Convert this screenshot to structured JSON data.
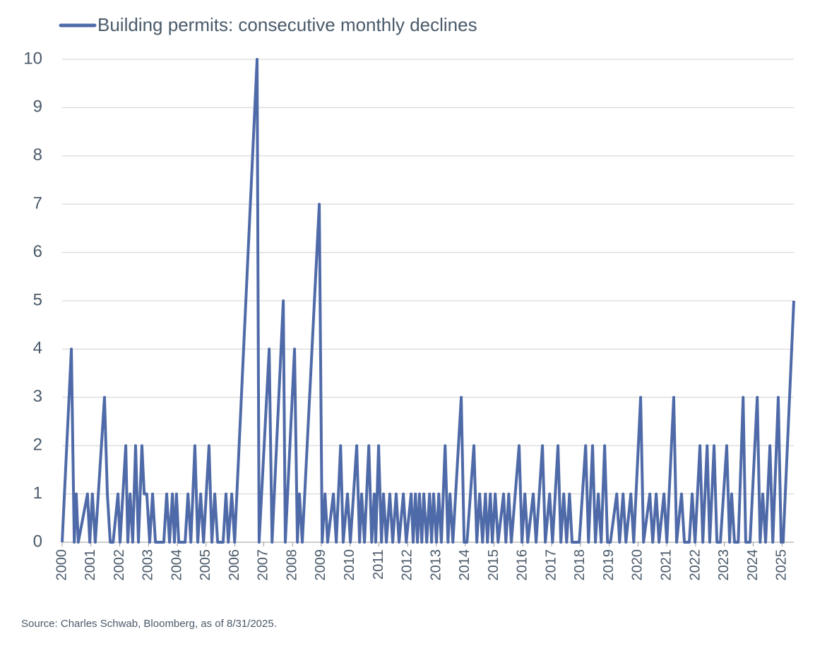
{
  "chart_data": {
    "type": "line",
    "series": [
      {
        "name": "Building permits: consecutive monthly declines",
        "color": "#4f6aa8",
        "x": [
          2000,
          2000.32,
          2000.42,
          2000.49,
          2000.56,
          2000.88,
          2000.96,
          2001.05,
          2001.15,
          2001.47,
          2001.57,
          2001.67,
          2001.77,
          2001.94,
          2002.01,
          2002.21,
          2002.28,
          2002.36,
          2002.45,
          2002.55,
          2002.65,
          2002.77,
          2002.85,
          2002.94,
          2003.04,
          2003.14,
          2003.24,
          2003.53,
          2003.63,
          2003.73,
          2003.83,
          2003.9,
          2003.97,
          2004.05,
          2004.27,
          2004.37,
          2004.47,
          2004.61,
          2004.71,
          2004.81,
          2004.91,
          2005.1,
          2005.2,
          2005.3,
          2005.4,
          2005.59,
          2005.69,
          2005.77,
          2005.89,
          2005.99,
          2006.77,
          2006.84,
          2007.19,
          2007.29,
          2007.68,
          2007.75,
          2008.07,
          2008.17,
          2008.24,
          2008.34,
          2008.93,
          2009.03,
          2009.13,
          2009.22,
          2009.42,
          2009.52,
          2009.67,
          2009.76,
          2009.91,
          2010.01,
          2010.23,
          2010.33,
          2010.4,
          2010.5,
          2010.65,
          2010.75,
          2010.84,
          2010.89,
          2010.99,
          2011.09,
          2011.16,
          2011.26,
          2011.38,
          2011.48,
          2011.6,
          2011.7,
          2011.85,
          2011.95,
          2012.12,
          2012.19,
          2012.27,
          2012.34,
          2012.41,
          2012.49,
          2012.56,
          2012.66,
          2012.76,
          2012.83,
          2012.9,
          2013,
          2013.08,
          2013.17,
          2013.3,
          2013.4,
          2013.47,
          2013.57,
          2013.86,
          2013.96,
          2014.06,
          2014.3,
          2014.4,
          2014.5,
          2014.6,
          2014.7,
          2014.77,
          2014.87,
          2014.94,
          2015.04,
          2015.14,
          2015.33,
          2015.41,
          2015.51,
          2015.6,
          2015.87,
          2015.97,
          2016.07,
          2016.17,
          2016.36,
          2016.46,
          2016.68,
          2016.78,
          2016.93,
          2017.03,
          2017.22,
          2017.32,
          2017.42,
          2017.52,
          2017.62,
          2017.71,
          2017.96,
          2018.18,
          2018.28,
          2018.42,
          2018.52,
          2018.62,
          2018.72,
          2018.84,
          2018.94,
          2019.04,
          2019.26,
          2019.36,
          2019.48,
          2019.58,
          2019.75,
          2019.85,
          2020.09,
          2020.19,
          2020.41,
          2020.51,
          2020.63,
          2020.73,
          2020.9,
          2021,
          2021.24,
          2021.34,
          2021.51,
          2021.61,
          2021.78,
          2021.88,
          2021.98,
          2022.15,
          2022.25,
          2022.4,
          2022.49,
          2022.64,
          2022.74,
          2022.86,
          2023.08,
          2023.18,
          2023.25,
          2023.35,
          2023.48,
          2023.65,
          2023.74,
          2023.89,
          2024.14,
          2024.24,
          2024.33,
          2024.43,
          2024.58,
          2024.68,
          2024.87,
          2024.97,
          2025.04,
          2025.41
        ],
        "values": [
          0,
          4,
          0,
          1,
          0,
          1,
          0,
          1,
          0,
          3,
          1,
          0,
          0,
          1,
          0,
          2,
          0,
          1,
          0,
          2,
          0,
          2,
          1,
          1,
          0,
          1,
          0,
          0,
          1,
          0,
          1,
          0,
          1,
          0,
          0,
          1,
          0,
          2,
          0,
          1,
          0,
          2,
          0,
          1,
          0,
          0,
          1,
          0,
          1,
          0,
          10,
          0,
          4,
          0,
          5,
          0,
          4,
          0,
          1,
          0,
          7,
          0,
          1,
          0,
          1,
          0,
          2,
          0,
          1,
          0,
          2,
          0,
          1,
          0,
          2,
          0,
          1,
          0,
          2,
          0,
          1,
          0,
          1,
          0,
          1,
          0,
          1,
          0,
          1,
          0,
          1,
          0,
          1,
          0,
          1,
          0,
          1,
          0,
          1,
          0,
          1,
          0,
          2,
          0,
          1,
          0,
          3,
          0,
          0,
          2,
          0,
          1,
          0,
          1,
          0,
          1,
          0,
          1,
          0,
          1,
          0,
          1,
          0,
          2,
          0,
          1,
          0,
          1,
          0,
          2,
          0,
          1,
          0,
          2,
          0,
          1,
          0,
          1,
          0,
          0,
          2,
          0,
          2,
          0,
          1,
          0,
          2,
          0,
          0,
          1,
          0,
          1,
          0,
          1,
          0,
          3,
          0,
          1,
          0,
          1,
          0,
          1,
          0,
          3,
          0,
          1,
          0,
          0,
          1,
          0,
          2,
          0,
          2,
          0,
          2,
          0,
          0,
          2,
          0,
          1,
          0,
          0,
          3,
          0,
          0,
          3,
          0,
          1,
          0,
          2,
          0,
          3,
          0,
          0,
          5
        ]
      }
    ],
    "xlim": [
      2000,
      2025.41
    ],
    "xticks": [
      2000,
      2001,
      2002,
      2003,
      2004,
      2005,
      2006,
      2007,
      2008,
      2009,
      2010,
      2011,
      2012,
      2013,
      2014,
      2015,
      2016,
      2017,
      2018,
      2019,
      2020,
      2021,
      2022,
      2023,
      2024,
      2025
    ],
    "ylim": [
      0,
      10
    ],
    "yticks": [
      0,
      1,
      2,
      3,
      4,
      5,
      6,
      7,
      8,
      9,
      10
    ],
    "grid": true,
    "source": "Source: Charles Schwab, Bloomberg, as of 8/31/2025."
  }
}
